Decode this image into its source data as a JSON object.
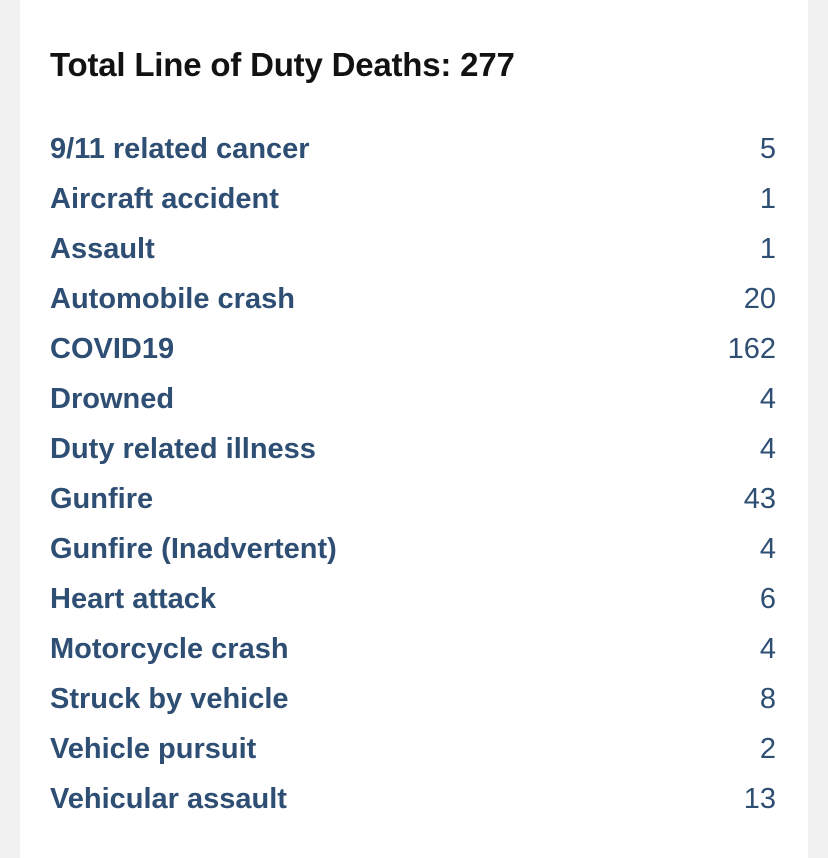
{
  "summary": {
    "title": "Total Line of Duty Deaths: 277"
  },
  "causes": [
    {
      "label": "9/11 related cancer",
      "count": "5"
    },
    {
      "label": "Aircraft accident",
      "count": "1"
    },
    {
      "label": "Assault",
      "count": "1"
    },
    {
      "label": "Automobile crash",
      "count": "20"
    },
    {
      "label": "COVID19",
      "count": "162"
    },
    {
      "label": "Drowned",
      "count": "4"
    },
    {
      "label": "Duty related illness",
      "count": "4"
    },
    {
      "label": "Gunfire",
      "count": "43"
    },
    {
      "label": "Gunfire (Inadvertent)",
      "count": "4"
    },
    {
      "label": "Heart attack",
      "count": "6"
    },
    {
      "label": "Motorcycle crash",
      "count": "4"
    },
    {
      "label": "Struck by vehicle",
      "count": "8"
    },
    {
      "label": "Vehicle pursuit",
      "count": "2"
    },
    {
      "label": "Vehicular assault",
      "count": "13"
    }
  ],
  "colors": {
    "link": "#2e4e73",
    "title": "#121212",
    "page_background": "#f1f1f1",
    "card_background": "#ffffff"
  }
}
